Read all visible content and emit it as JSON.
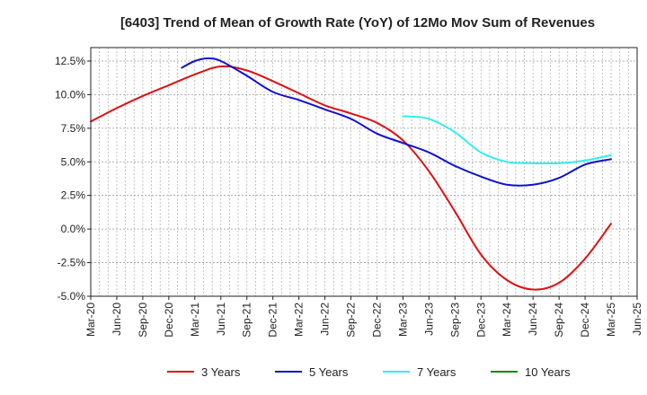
{
  "chart_data": {
    "type": "line",
    "title": "[6403]  Trend of Mean of Growth Rate (YoY) of 12Mo Mov Sum of Revenues",
    "xlabel": "",
    "ylabel": "",
    "ylim": [
      -5.0,
      13.5
    ],
    "yticks": [
      -5.0,
      -2.5,
      0.0,
      2.5,
      5.0,
      7.5,
      10.0,
      12.5
    ],
    "ytick_labels": [
      "-5.0%",
      "-2.5%",
      "0.0%",
      "2.5%",
      "5.0%",
      "7.5%",
      "10.0%",
      "12.5%"
    ],
    "xticks": [
      "Mar-20",
      "Jun-20",
      "Sep-20",
      "Dec-20",
      "Mar-21",
      "Jun-21",
      "Sep-21",
      "Dec-21",
      "Mar-22",
      "Jun-22",
      "Sep-22",
      "Dec-22",
      "Mar-23",
      "Jun-23",
      "Sep-23",
      "Dec-23",
      "Mar-24",
      "Jun-24",
      "Sep-24",
      "Dec-24",
      "Mar-25",
      "Jun-25"
    ],
    "grid": true,
    "legend_position": "bottom",
    "series": [
      {
        "name": "3 Years",
        "color": "#dd1111",
        "x": [
          0,
          1,
          2,
          3,
          4,
          5,
          6,
          7,
          8,
          9,
          10,
          11,
          12,
          13,
          14,
          15,
          16,
          17,
          18,
          19,
          20
        ],
        "values": [
          8.0,
          9.0,
          9.9,
          10.7,
          11.5,
          12.1,
          11.8,
          11.0,
          10.1,
          9.2,
          8.6,
          7.9,
          6.6,
          4.3,
          1.3,
          -1.9,
          -3.8,
          -4.5,
          -4.0,
          -2.2,
          0.4
        ]
      },
      {
        "name": "5 Years",
        "color": "#1111cc",
        "x": [
          3.5,
          4,
          4.5,
          5,
          6,
          7,
          8,
          9,
          10,
          11,
          12,
          13,
          14,
          15,
          16,
          17,
          18,
          19,
          20
        ],
        "values": [
          12.0,
          12.5,
          12.7,
          12.5,
          11.4,
          10.2,
          9.6,
          8.9,
          8.2,
          7.1,
          6.4,
          5.7,
          4.7,
          3.9,
          3.3,
          3.3,
          3.8,
          4.8,
          5.2
        ]
      },
      {
        "name": "7 Years",
        "color": "#33eeee",
        "x": [
          12,
          13,
          14,
          15,
          16,
          17,
          18,
          19,
          20
        ],
        "values": [
          8.4,
          8.2,
          7.2,
          5.7,
          5.0,
          4.9,
          4.9,
          5.1,
          5.5
        ]
      },
      {
        "name": "10 Years",
        "color": "#118811",
        "x": [],
        "values": []
      }
    ]
  }
}
